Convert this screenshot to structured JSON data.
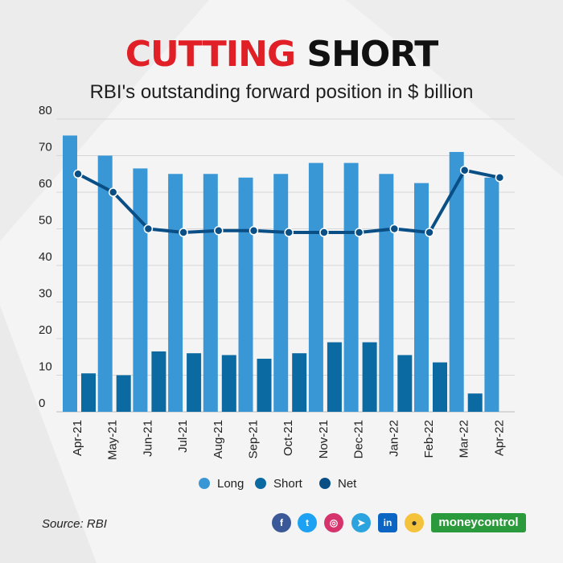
{
  "title": {
    "part1": "CUTTING",
    "part2": "SHORT"
  },
  "subtitle": "RBI's outstanding forward position in $ billion",
  "source": "Source: RBI",
  "brand": "moneycontrol",
  "social_icons": [
    "facebook-icon",
    "twitter-icon",
    "instagram-icon",
    "telegram-icon",
    "linkedin-icon",
    "koo-icon"
  ],
  "colors": {
    "long": "#3a97d6",
    "short": "#0b6aa2",
    "net": "#0a4e86",
    "title_red": "#e11f26"
  },
  "chart_data": {
    "type": "bar",
    "categories": [
      "Apr-21",
      "May-21",
      "Jun-21",
      "Jul-21",
      "Aug-21",
      "Sep-21",
      "Oct-21",
      "Nov-21",
      "Dec-21",
      "Jan-22",
      "Feb-22",
      "Mar-22",
      "Apr-22"
    ],
    "series": [
      {
        "name": "Long",
        "type": "bar",
        "values": [
          75.5,
          70,
          66.5,
          65,
          65,
          64,
          65,
          68,
          68,
          65,
          62.5,
          71,
          64
        ]
      },
      {
        "name": "Short",
        "type": "bar",
        "values": [
          10.5,
          10,
          16.5,
          16,
          15.5,
          14.5,
          16,
          19,
          19,
          15.5,
          13.5,
          5,
          null
        ]
      },
      {
        "name": "Net",
        "type": "line",
        "values": [
          65,
          60,
          50,
          49,
          49.5,
          49.5,
          49,
          49,
          49,
          50,
          49,
          66,
          64
        ]
      }
    ],
    "yticks": [
      0,
      10,
      20,
      30,
      40,
      50,
      60,
      70,
      80
    ],
    "ylim": [
      0,
      80
    ],
    "grid": true,
    "legend": "bottom-center",
    "xlabel": "",
    "ylabel": ""
  }
}
